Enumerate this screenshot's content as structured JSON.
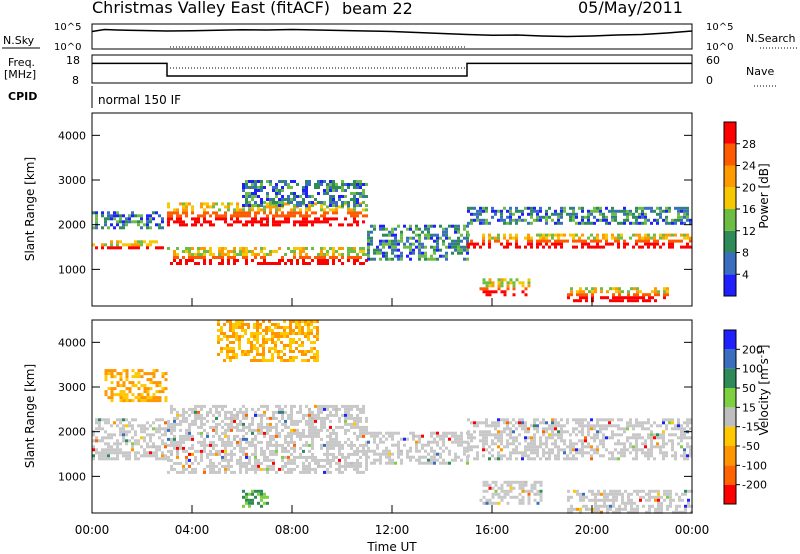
{
  "header": {
    "title": "Christmas Valley East (fitACF)",
    "beam": "beam 22",
    "date": "05/May/2011"
  },
  "panels": {
    "nsky": {
      "label": "N.Sky",
      "tick_top": "10^5",
      "tick_bottom": "10^0"
    },
    "nsearch": {
      "label": "N.Search",
      "tick_top": "10^5",
      "tick_bottom": "10^0"
    },
    "freq": {
      "label_line1": "Freq.",
      "label_line2": "[MHz]",
      "tick_top": "18",
      "tick_bottom": "8"
    },
    "nave": {
      "label": "Nave",
      "tick_top": "60",
      "tick_bottom": "0"
    },
    "cpid": {
      "label": "CPID",
      "mode": "normal 150 IF"
    }
  },
  "colors": {
    "power": [
      "#2020ff",
      "#3a6fc0",
      "#2e8b57",
      "#6dbd45",
      "#f5c800",
      "#ff9a00",
      "#ff5a00",
      "#ff0000"
    ],
    "velocity": [
      "#ff0000",
      "#ff6400",
      "#ff9600",
      "#ffc800",
      "#bebebe",
      "#7dd040",
      "#2e8b57",
      "#3a6fc0",
      "#2020ff"
    ],
    "ground_scatter": "#c8c8c8"
  },
  "chart_data": [
    {
      "type": "heatmap",
      "quantity": "power",
      "ylabel": "Slant Range [km]",
      "ylim": [
        180,
        4500
      ],
      "y_ticks": [
        "1000",
        "2000",
        "3000",
        "4000"
      ],
      "x_ticks": [
        "00:00",
        "04:00",
        "08:00",
        "12:00",
        "16:00",
        "20:00",
        "00:00"
      ],
      "xlim_hours": [
        0,
        24
      ],
      "colorbar": {
        "label": "Power [dB]",
        "ticks": [
          "4",
          "8",
          "12",
          "16",
          "20",
          "24",
          "28"
        ],
        "range": [
          0,
          30
        ]
      },
      "bands": [
        {
          "start_h": 0.0,
          "end_h": 2.8,
          "range_km": [
            1450,
            1650
          ],
          "level": "high"
        },
        {
          "start_h": 0.0,
          "end_h": 2.8,
          "range_km": [
            1900,
            2300
          ],
          "level": "mid"
        },
        {
          "start_h": 3.0,
          "end_h": 11.0,
          "range_km": [
            1100,
            1500
          ],
          "level": "high"
        },
        {
          "start_h": 3.0,
          "end_h": 11.0,
          "range_km": [
            2000,
            2500
          ],
          "level": "high"
        },
        {
          "start_h": 6.0,
          "end_h": 11.0,
          "range_km": [
            2400,
            3000
          ],
          "level": "mid"
        },
        {
          "start_h": 11.0,
          "end_h": 15.0,
          "range_km": [
            1200,
            2000
          ],
          "level": "mid"
        },
        {
          "start_h": 15.0,
          "end_h": 24.0,
          "range_km": [
            1500,
            1800
          ],
          "level": "high"
        },
        {
          "start_h": 15.0,
          "end_h": 24.0,
          "range_km": [
            2000,
            2400
          ],
          "level": "mid"
        },
        {
          "start_h": 15.5,
          "end_h": 17.5,
          "range_km": [
            400,
            800
          ],
          "level": "high"
        },
        {
          "start_h": 19.0,
          "end_h": 23.0,
          "range_km": [
            300,
            600
          ],
          "level": "high"
        }
      ]
    },
    {
      "type": "heatmap",
      "quantity": "velocity",
      "ylabel": "Slant Range [km]",
      "xlabel": "Time UT",
      "ylim": [
        180,
        4500
      ],
      "y_ticks": [
        "1000",
        "2000",
        "3000",
        "4000"
      ],
      "x_ticks": [
        "00:00",
        "04:00",
        "08:00",
        "12:00",
        "16:00",
        "20:00",
        "00:00"
      ],
      "xlim_hours": [
        0,
        24
      ],
      "colorbar": {
        "label": "Velocity [m s^-1]",
        "ticks": [
          "200",
          "100",
          "50",
          "15",
          "-15",
          "-50",
          "-100",
          "-200"
        ],
        "range": [
          -250,
          250
        ]
      },
      "bands": [
        {
          "start_h": 0.0,
          "end_h": 3.0,
          "range_km": [
            1400,
            2300
          ],
          "kind": "ground"
        },
        {
          "start_h": 3.0,
          "end_h": 11.0,
          "range_km": [
            1100,
            2600
          ],
          "kind": "ground"
        },
        {
          "start_h": 11.0,
          "end_h": 15.0,
          "range_km": [
            1300,
            2000
          ],
          "kind": "ground"
        },
        {
          "start_h": 15.0,
          "end_h": 24.0,
          "range_km": [
            1400,
            2300
          ],
          "kind": "ground"
        },
        {
          "start_h": 15.5,
          "end_h": 18.0,
          "range_km": [
            400,
            900
          ],
          "kind": "ground"
        },
        {
          "start_h": 19.0,
          "end_h": 24.0,
          "range_km": [
            200,
            700
          ],
          "kind": "ground"
        },
        {
          "start_h": 5.0,
          "end_h": 9.0,
          "range_km": [
            3600,
            4500
          ],
          "kind": "negative"
        },
        {
          "start_h": 0.5,
          "end_h": 3.0,
          "range_km": [
            2700,
            3400
          ],
          "kind": "negative"
        },
        {
          "start_h": 6.0,
          "end_h": 7.0,
          "range_km": [
            300,
            700
          ],
          "kind": "positive"
        }
      ]
    }
  ],
  "line_panels": {
    "nsky_points": [
      [
        0,
        0.7
      ],
      [
        0.5,
        0.78
      ],
      [
        1,
        0.76
      ],
      [
        2,
        0.74
      ],
      [
        3,
        0.72
      ],
      [
        4,
        0.73
      ],
      [
        5,
        0.75
      ],
      [
        6,
        0.77
      ],
      [
        7,
        0.76
      ],
      [
        8,
        0.78
      ],
      [
        9,
        0.76
      ],
      [
        10,
        0.74
      ],
      [
        11,
        0.72
      ],
      [
        12,
        0.7
      ],
      [
        13,
        0.66
      ],
      [
        14,
        0.62
      ],
      [
        15,
        0.58
      ],
      [
        16,
        0.55
      ],
      [
        17,
        0.56
      ],
      [
        18,
        0.52
      ],
      [
        19,
        0.5
      ],
      [
        20,
        0.52
      ],
      [
        21,
        0.56
      ],
      [
        22,
        0.58
      ],
      [
        23,
        0.64
      ],
      [
        24,
        0.72
      ]
    ],
    "freq_steps": [
      [
        0,
        15
      ],
      [
        3,
        15
      ],
      [
        3,
        10.5
      ],
      [
        15,
        10.5
      ],
      [
        15,
        15
      ],
      [
        24,
        15
      ]
    ]
  },
  "time_axis": {
    "label": "Time UT"
  }
}
